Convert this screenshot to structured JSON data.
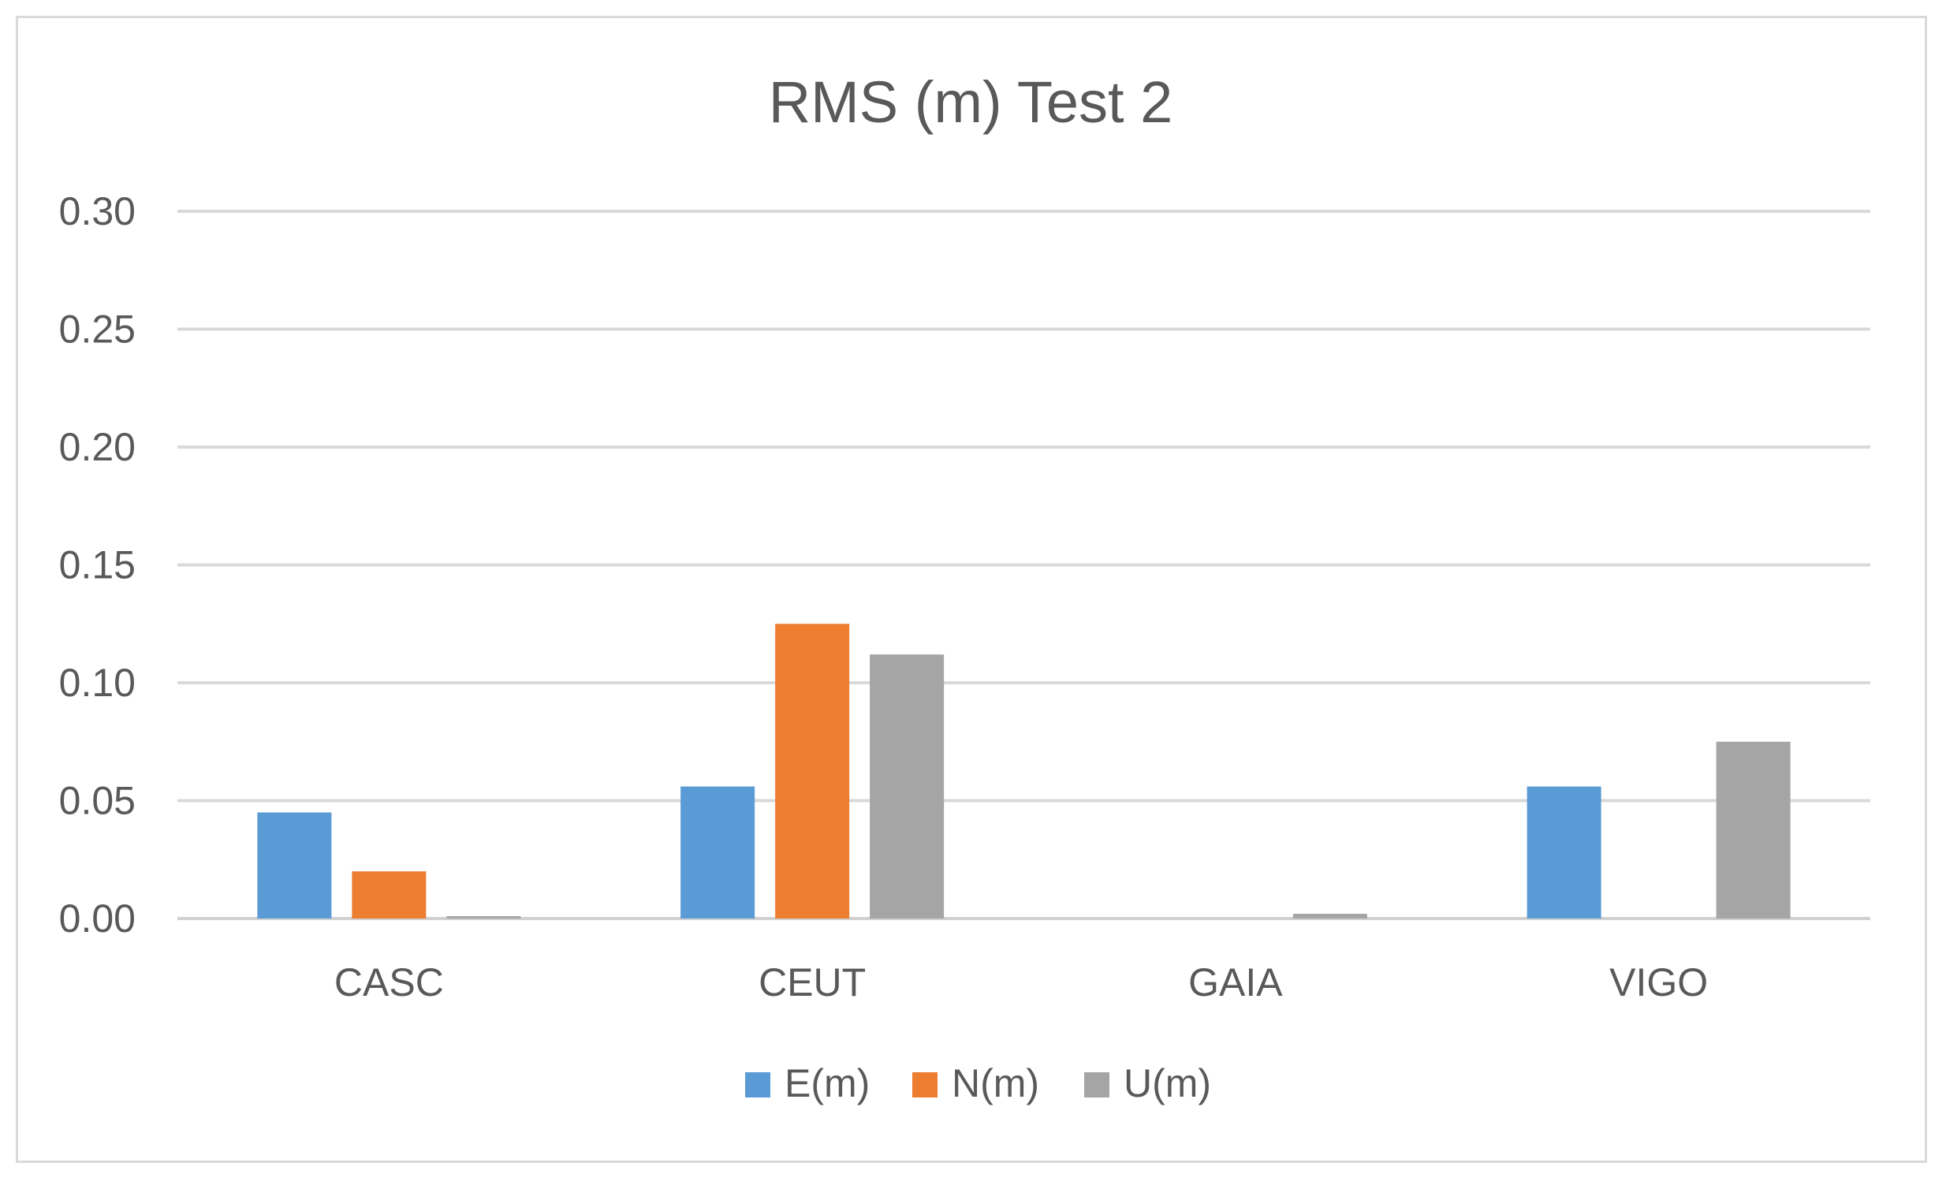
{
  "chart_data": {
    "type": "bar",
    "title": "RMS (m) Test 2",
    "xlabel": "",
    "ylabel": "",
    "categories": [
      "CASC",
      "CEUT",
      "GAIA",
      "VIGO"
    ],
    "series": [
      {
        "name": "E(m)",
        "color": "#5b9bd5",
        "values": [
          0.045,
          0.056,
          0.0,
          0.056
        ]
      },
      {
        "name": "N(m)",
        "color": "#ed7d31",
        "values": [
          0.02,
          0.125,
          0.0,
          0.0
        ]
      },
      {
        "name": "U(m)",
        "color": "#a5a5a5",
        "values": [
          0.001,
          0.112,
          0.002,
          0.075
        ]
      }
    ],
    "ylim": [
      0,
      0.3
    ],
    "yticks": [
      "0.00",
      "0.05",
      "0.10",
      "0.15",
      "0.20",
      "0.25",
      "0.30"
    ],
    "grid": true,
    "legend_position": "bottom"
  }
}
